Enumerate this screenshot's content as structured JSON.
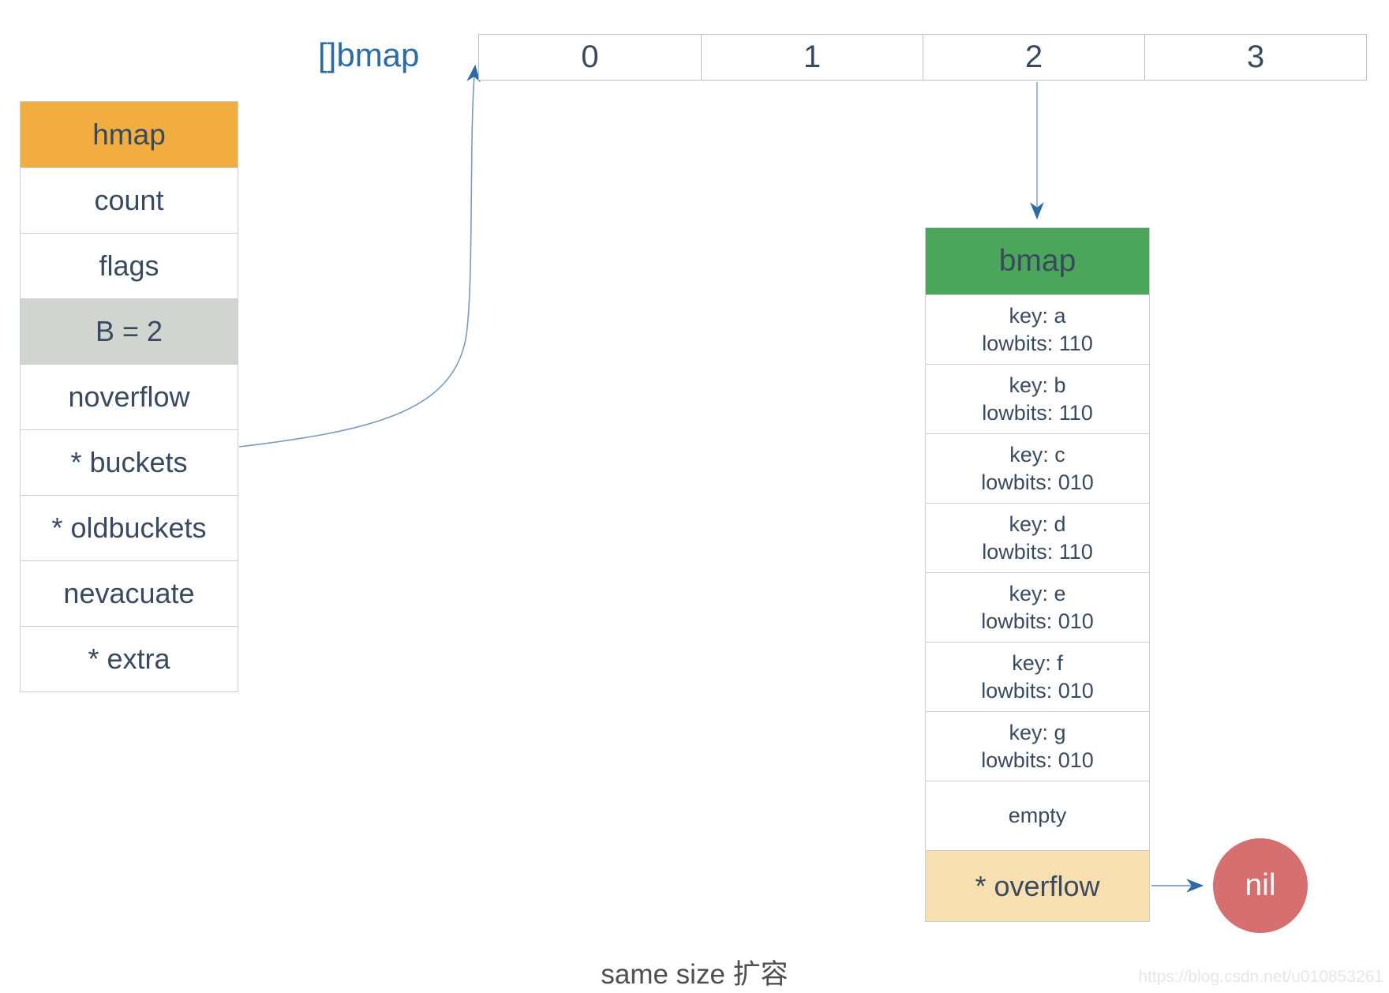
{
  "hmap_table": {
    "header": "hmap",
    "rows": [
      "count",
      "flags",
      "B = 2",
      "noverflow",
      "* buckets",
      "* oldbuckets",
      "nevacuate",
      "* extra"
    ],
    "highlight_index": 2
  },
  "array": {
    "label": "[]bmap",
    "cells": [
      "0",
      "1",
      "2",
      "3"
    ]
  },
  "bucket_table": {
    "header": "bmap",
    "cells": [
      {
        "line1": "key: a",
        "line2": "lowbits: 110"
      },
      {
        "line1": "key: b",
        "line2": "lowbits: 110"
      },
      {
        "line1": "key: c",
        "line2": "lowbits: 010"
      },
      {
        "line1": "key: d",
        "line2": "lowbits: 110"
      },
      {
        "line1": "key: e",
        "line2": "lowbits: 010"
      },
      {
        "line1": "key: f",
        "line2": "lowbits: 010"
      },
      {
        "line1": "key: g",
        "line2": "lowbits: 010"
      },
      {
        "line1": "empty"
      }
    ],
    "overflow": "* overflow"
  },
  "nil_label": "nil",
  "caption": "same size 扩容",
  "watermark": "https://blog.csdn.net/u010853261",
  "colors": {
    "orange": "#f2ad40",
    "green": "#4ba55b",
    "sage": "#d0d5cf",
    "tan": "#f8dfb1",
    "red": "#d66f6f",
    "blue": "#2d6ca2",
    "ink": "#3a4a5e",
    "arrow": "#7a99bc"
  }
}
